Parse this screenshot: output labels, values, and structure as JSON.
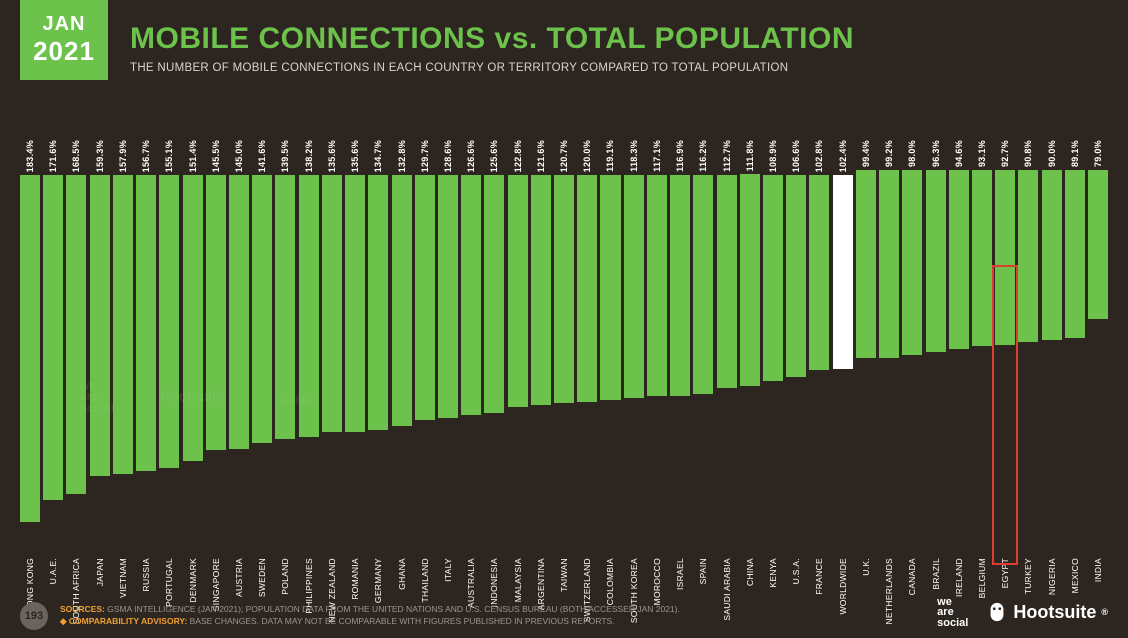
{
  "badge": {
    "month": "JAN",
    "year": "2021"
  },
  "header": {
    "title": "MOBILE CONNECTIONS vs. TOTAL POPULATION",
    "subtitle": "THE NUMBER OF MOBILE CONNECTIONS IN EACH COUNTRY OR TERRITORY COMPARED TO TOTAL POPULATION"
  },
  "chart": {
    "type": "bar",
    "max_value": 200,
    "bar_color": "#6cc24a",
    "worldwide_bar_color": "#ffffff",
    "background": "#2d2620",
    "label_color": "#ffffff",
    "value_fontsize": 9,
    "category_fontsize": 8.5,
    "highlight_color": "#e03c31",
    "highlight_index": 42,
    "bars": [
      {
        "label": "HONG KONG",
        "value": 183.4
      },
      {
        "label": "U.A.E.",
        "value": 171.6
      },
      {
        "label": "SOUTH AFRICA",
        "value": 168.5
      },
      {
        "label": "JAPAN",
        "value": 159.3
      },
      {
        "label": "VIETNAM",
        "value": 157.9
      },
      {
        "label": "RUSSIA",
        "value": 156.7
      },
      {
        "label": "PORTUGAL",
        "value": 155.1
      },
      {
        "label": "DENMARK",
        "value": 151.4
      },
      {
        "label": "SINGAPORE",
        "value": 145.5
      },
      {
        "label": "AUSTRIA",
        "value": 145.0
      },
      {
        "label": "SWEDEN",
        "value": 141.6
      },
      {
        "label": "POLAND",
        "value": 139.5
      },
      {
        "label": "PHILIPPINES",
        "value": 138.2
      },
      {
        "label": "NEW ZEALAND",
        "value": 135.6
      },
      {
        "label": "ROMANIA",
        "value": 135.6
      },
      {
        "label": "GERMANY",
        "value": 134.7
      },
      {
        "label": "GHANA",
        "value": 132.8
      },
      {
        "label": "THAILAND",
        "value": 129.7
      },
      {
        "label": "ITALY",
        "value": 128.6
      },
      {
        "label": "AUSTRALIA",
        "value": 126.6
      },
      {
        "label": "INDONESIA",
        "value": 125.6
      },
      {
        "label": "MALAYSIA",
        "value": 122.8
      },
      {
        "label": "ARGENTINA",
        "value": 121.6
      },
      {
        "label": "TAIWAN",
        "value": 120.7
      },
      {
        "label": "SWITZERLAND",
        "value": 120.0
      },
      {
        "label": "COLOMBIA",
        "value": 119.1
      },
      {
        "label": "SOUTH KOREA",
        "value": 118.3
      },
      {
        "label": "MOROCCO",
        "value": 117.1
      },
      {
        "label": "ISRAEL",
        "value": 116.9
      },
      {
        "label": "SPAIN",
        "value": 116.2
      },
      {
        "label": "SAUDI ARABIA",
        "value": 112.7
      },
      {
        "label": "CHINA",
        "value": 111.8
      },
      {
        "label": "KENYA",
        "value": 108.9
      },
      {
        "label": "U.S.A.",
        "value": 106.6
      },
      {
        "label": "FRANCE",
        "value": 102.8
      },
      {
        "label": "WORLDWIDE",
        "value": 102.4,
        "highlight_bar": true
      },
      {
        "label": "U.K.",
        "value": 99.4
      },
      {
        "label": "NETHERLANDS",
        "value": 99.2
      },
      {
        "label": "CANADA",
        "value": 98.0
      },
      {
        "label": "BRAZIL",
        "value": 96.3
      },
      {
        "label": "IRELAND",
        "value": 94.6
      },
      {
        "label": "BELGIUM",
        "value": 93.1
      },
      {
        "label": "EGYPT",
        "value": 92.7
      },
      {
        "label": "TURKEY",
        "value": 90.8
      },
      {
        "label": "NIGERIA",
        "value": 90.0
      },
      {
        "label": "MEXICO",
        "value": 89.1
      },
      {
        "label": "INDIA",
        "value": 79.0
      }
    ]
  },
  "footer": {
    "page": "193",
    "sources_label": "SOURCES:",
    "sources": " GSMA INTELLIGENCE (JAN 2021); POPULATION DATA FROM THE UNITED NATIONS AND U.S. CENSUS BUREAU (BOTH ACCESSED JAN 2021).",
    "advisory_label": "◆ COMPARABILITY ADVISORY:",
    "advisory": " BASE CHANGES. DATA MAY NOT BE COMPARABLE WITH FIGURES PUBLISHED IN PREVIOUS REPORTS.",
    "logo1_l1": "we",
    "logo1_l2": "are",
    "logo1_l3": "social",
    "logo2": "Hootsuite",
    "reg": "®"
  },
  "watermarks": {
    "w1": "we\nare\nsocial",
    "w2": "Hootsuite",
    "w3": "GSMA"
  }
}
